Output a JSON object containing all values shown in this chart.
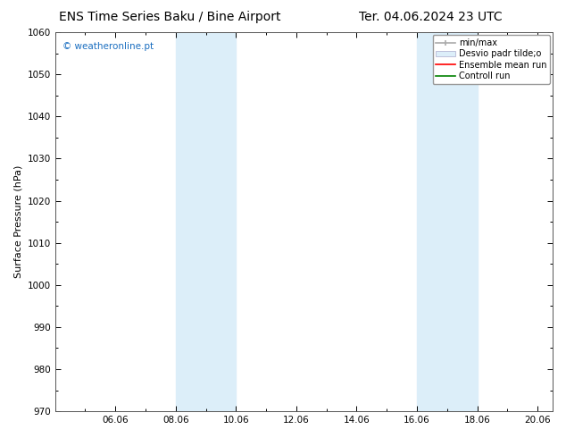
{
  "title_left": "ENS Time Series Baku / Bine Airport",
  "title_right": "Ter. 04.06.2024 23 UTC",
  "ylabel": "Surface Pressure (hPa)",
  "ylim": [
    970,
    1060
  ],
  "yticks": [
    970,
    980,
    990,
    1000,
    1010,
    1020,
    1030,
    1040,
    1050,
    1060
  ],
  "x_min": 4.0,
  "x_max": 20.5,
  "xtick_labels": [
    "06.06",
    "08.06",
    "10.06",
    "12.06",
    "14.06",
    "16.06",
    "18.06",
    "20.06"
  ],
  "xtick_positions": [
    6,
    8,
    10,
    12,
    14,
    16,
    18,
    20
  ],
  "shaded_bands": [
    {
      "x_start": 8.0,
      "x_end": 10.0
    },
    {
      "x_start": 16.0,
      "x_end": 18.0
    }
  ],
  "shaded_color": "#dceef9",
  "background_color": "#ffffff",
  "watermark_text": "© weatheronline.pt",
  "watermark_color": "#1a6ec0",
  "legend_entries": [
    {
      "label": "min/max"
    },
    {
      "label": "Desvio padr tilde;o"
    },
    {
      "label": "Ensemble mean run"
    },
    {
      "label": "Controll run"
    }
  ],
  "title_fontsize": 10,
  "axis_fontsize": 8,
  "tick_fontsize": 7.5,
  "legend_fontsize": 7
}
